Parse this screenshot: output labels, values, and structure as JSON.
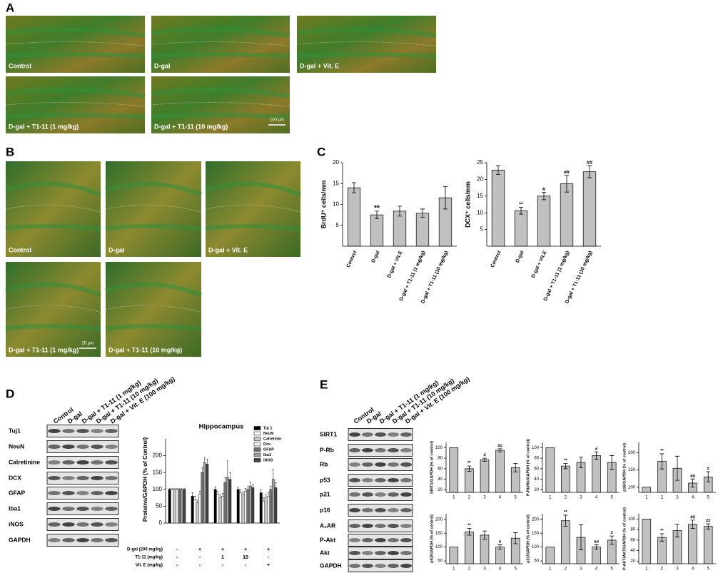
{
  "panel_labels": [
    "A",
    "B",
    "C",
    "D",
    "E"
  ],
  "panel_a": {
    "images": [
      "Control",
      "D-gal",
      "D-gal + Vit. E",
      "D-gal + T1-11 (1 mg/kg)",
      "D-gal + T1-11 (10 mg/kg)"
    ],
    "scale_bar": "100 µm"
  },
  "panel_b": {
    "images": [
      "Control",
      "D-gal",
      "D-gal + Vit. E",
      "D-gal + T1-11 (1 mg/kg)",
      "D-gal + T1-11 (10 mg/kg)"
    ],
    "scale_bar": "25 µm"
  },
  "panel_c": {
    "charts": [
      {
        "type": "bar",
        "y_label": "BrdU⁺ cells/mm",
        "color": "#c0c0c0",
        "categories": [
          "Control",
          "D-gal",
          "D-gal + Vit.E",
          "D-gal + T1-11 (1 mg/kg)",
          "D-gal + T1-11 (10 mg/kg)"
        ],
        "values": [
          14,
          7.5,
          8.4,
          7.9,
          11.6
        ],
        "errors": [
          1.2,
          0.9,
          1.2,
          1.0,
          2.7
        ],
        "annotations": [
          null,
          "**",
          null,
          null,
          null
        ],
        "ylim": [
          0,
          20
        ],
        "yticks": [
          5,
          10,
          15,
          20
        ]
      },
      {
        "type": "bar",
        "y_label": "DCX⁺ cells/mm",
        "color": "#c0c0c0",
        "categories": [
          "Control",
          "D-gal",
          "D-gal + Vit.E",
          "D-gal + T1-11 (1 mg/kg)",
          "D-gal + T1-11 (10 mg/kg)"
        ],
        "values": [
          22.8,
          10.6,
          15,
          18.7,
          22.3
        ],
        "errors": [
          1.3,
          1.0,
          1.1,
          2.5,
          1.8
        ],
        "annotations": [
          null,
          "**",
          "#",
          "##",
          "##"
        ],
        "ylim": [
          0,
          25
        ],
        "yticks": [
          5,
          10,
          15,
          20,
          25
        ]
      }
    ]
  },
  "panel_d": {
    "lanes": [
      "Control",
      "D-gal",
      "D-gal + T1-11 (1 mg/kg)",
      "D-gal + T1-11 (10 mg/kg)",
      "D-gal + Vit. E (100 mg/kg)"
    ],
    "blot_rows": [
      "Tuj1",
      "NeuN",
      "Calretinine",
      "DCX",
      "GFAP",
      "Iba1",
      "iNOS",
      "GAPDH"
    ],
    "chart": {
      "type": "grouped_bar",
      "title": "Hippocampus",
      "y_label": "Proteins/GAPDH (% of Control)",
      "ylim": [
        0,
        250
      ],
      "yticks": [
        0,
        50,
        100,
        150,
        200
      ],
      "series": [
        {
          "name": "Tuj 1",
          "color": "#000000",
          "values": [
            100,
            80,
            100,
            100,
            90
          ],
          "errors": [
            2,
            10,
            8,
            6,
            10
          ]
        },
        {
          "name": "NeuN",
          "color": "#ffffff",
          "values": [
            100,
            70,
            85,
            90,
            65
          ],
          "errors": [
            2,
            10,
            10,
            8,
            10
          ]
        },
        {
          "name": "Calretinin",
          "color": "#c8c8c8",
          "values": [
            100,
            60,
            75,
            85,
            75
          ],
          "errors": [
            2,
            8,
            10,
            8,
            10
          ]
        },
        {
          "name": "Dcx",
          "color": "#f0f0f0",
          "values": [
            100,
            85,
            80,
            95,
            80
          ],
          "errors": [
            2,
            10,
            8,
            8,
            10
          ]
        },
        {
          "name": "GFAP",
          "color": "#707070",
          "values": [
            100,
            150,
            120,
            100,
            100
          ],
          "errors": [
            2,
            15,
            15,
            10,
            10
          ]
        },
        {
          "name": "Iba1",
          "color": "#a0a0a0",
          "values": [
            100,
            180,
            135,
            110,
            130
          ],
          "errors": [
            2,
            15,
            50,
            12,
            30
          ]
        },
        {
          "name": "iNOS",
          "color": "#404040",
          "values": [
            100,
            175,
            130,
            105,
            105
          ],
          "errors": [
            2,
            15,
            20,
            10,
            15
          ]
        }
      ]
    },
    "treatment_rows": [
      {
        "label": "D-gal (200 mg/kg)",
        "cells": [
          "-",
          "+",
          "+",
          "+",
          "+"
        ]
      },
      {
        "label": "T1-11 (mg/kg)",
        "cells": [
          "-",
          "-",
          "1",
          "10",
          "-"
        ]
      },
      {
        "label": "Vit. E (mg/kg)",
        "cells": [
          "-",
          "-",
          "-",
          "-",
          "+"
        ]
      }
    ]
  },
  "panel_e": {
    "lanes": [
      "Control",
      "D-gal",
      "D-gal + T1-11 (1 mg/kg)",
      "D-gal + T1-11 (10 mg/kg)",
      "D-gal + Vit. E (100 mg/kg)"
    ],
    "blot_rows": [
      "SIRT1",
      "P-Rb",
      "Rb",
      "p53",
      "p21",
      "p16",
      "A₂AR",
      "P-Akt",
      "Akt",
      "GAPDH"
    ],
    "charts": [
      {
        "type": "bar",
        "y_label": "SIRT1/GAPDH (% of control)",
        "color": "#c0c0c0",
        "categories": [
          "1",
          "2",
          "3",
          "4",
          "5"
        ],
        "values": [
          100,
          60,
          77,
          95,
          62
        ],
        "errors": [
          0,
          5,
          3,
          3,
          8
        ],
        "annotations": [
          null,
          "**",
          "#",
          "##",
          null
        ],
        "ylim": [
          15,
          110
        ],
        "yticks": [
          20,
          40,
          60,
          80,
          100
        ]
      },
      {
        "type": "bar",
        "y_label": "P-Rb/Rb/GAPDH (% of control)",
        "color": "#c0c0c0",
        "categories": [
          "1",
          "2",
          "3",
          "4",
          "5"
        ],
        "values": [
          100,
          65,
          72,
          85,
          72
        ],
        "errors": [
          0,
          5,
          10,
          7,
          13
        ],
        "annotations": [
          null,
          "**",
          null,
          "#",
          null
        ],
        "ylim": [
          15,
          110
        ],
        "yticks": [
          20,
          40,
          60,
          80,
          100
        ]
      },
      {
        "type": "bar",
        "y_label": "p16/GAPDH (% of control)",
        "color": "#c0c0c0",
        "categories": [
          "1",
          "2",
          "3",
          "4",
          "5"
        ],
        "values": [
          100,
          175,
          155,
          112,
          130
        ],
        "errors": [
          0,
          22,
          35,
          12,
          15
        ],
        "annotations": [
          null,
          "**",
          null,
          "##",
          "#"
        ],
        "ylim": [
          85,
          230
        ],
        "yticks": [
          100,
          150,
          200
        ]
      },
      {
        "type": "bar",
        "y_label": "p53/GAPDH (% of control)",
        "color": "#c0c0c0",
        "categories": [
          "1",
          "2",
          "3",
          "4",
          "5"
        ],
        "values": [
          100,
          155,
          143,
          100,
          132
        ],
        "errors": [
          0,
          12,
          15,
          8,
          20
        ],
        "annotations": [
          null,
          "**",
          null,
          "#",
          null
        ],
        "ylim": [
          40,
          220
        ],
        "yticks": [
          50,
          100,
          150,
          200
        ]
      },
      {
        "type": "bar",
        "y_label": "p21/GAPDH (% of control)",
        "color": "#c0c0c0",
        "categories": [
          "1",
          "2",
          "3",
          "4",
          "5"
        ],
        "values": [
          100,
          195,
          135,
          100,
          125
        ],
        "errors": [
          0,
          20,
          45,
          8,
          15
        ],
        "annotations": [
          null,
          "**",
          null,
          "##",
          "#"
        ],
        "ylim": [
          40,
          220
        ],
        "yticks": [
          50,
          100,
          150,
          200
        ]
      },
      {
        "type": "bar",
        "y_label": "P-AKT/AKT/GAPDH (% of control)",
        "color": "#c0c0c0",
        "categories": [
          "1",
          "2",
          "3",
          "4",
          "5"
        ],
        "values": [
          100,
          65,
          78,
          90,
          86
        ],
        "errors": [
          0,
          7,
          12,
          8,
          5
        ],
        "annotations": [
          null,
          "**",
          null,
          "##",
          "##"
        ],
        "ylim": [
          15,
          110
        ],
        "yticks": [
          20,
          40,
          60,
          80,
          100
        ]
      }
    ]
  }
}
